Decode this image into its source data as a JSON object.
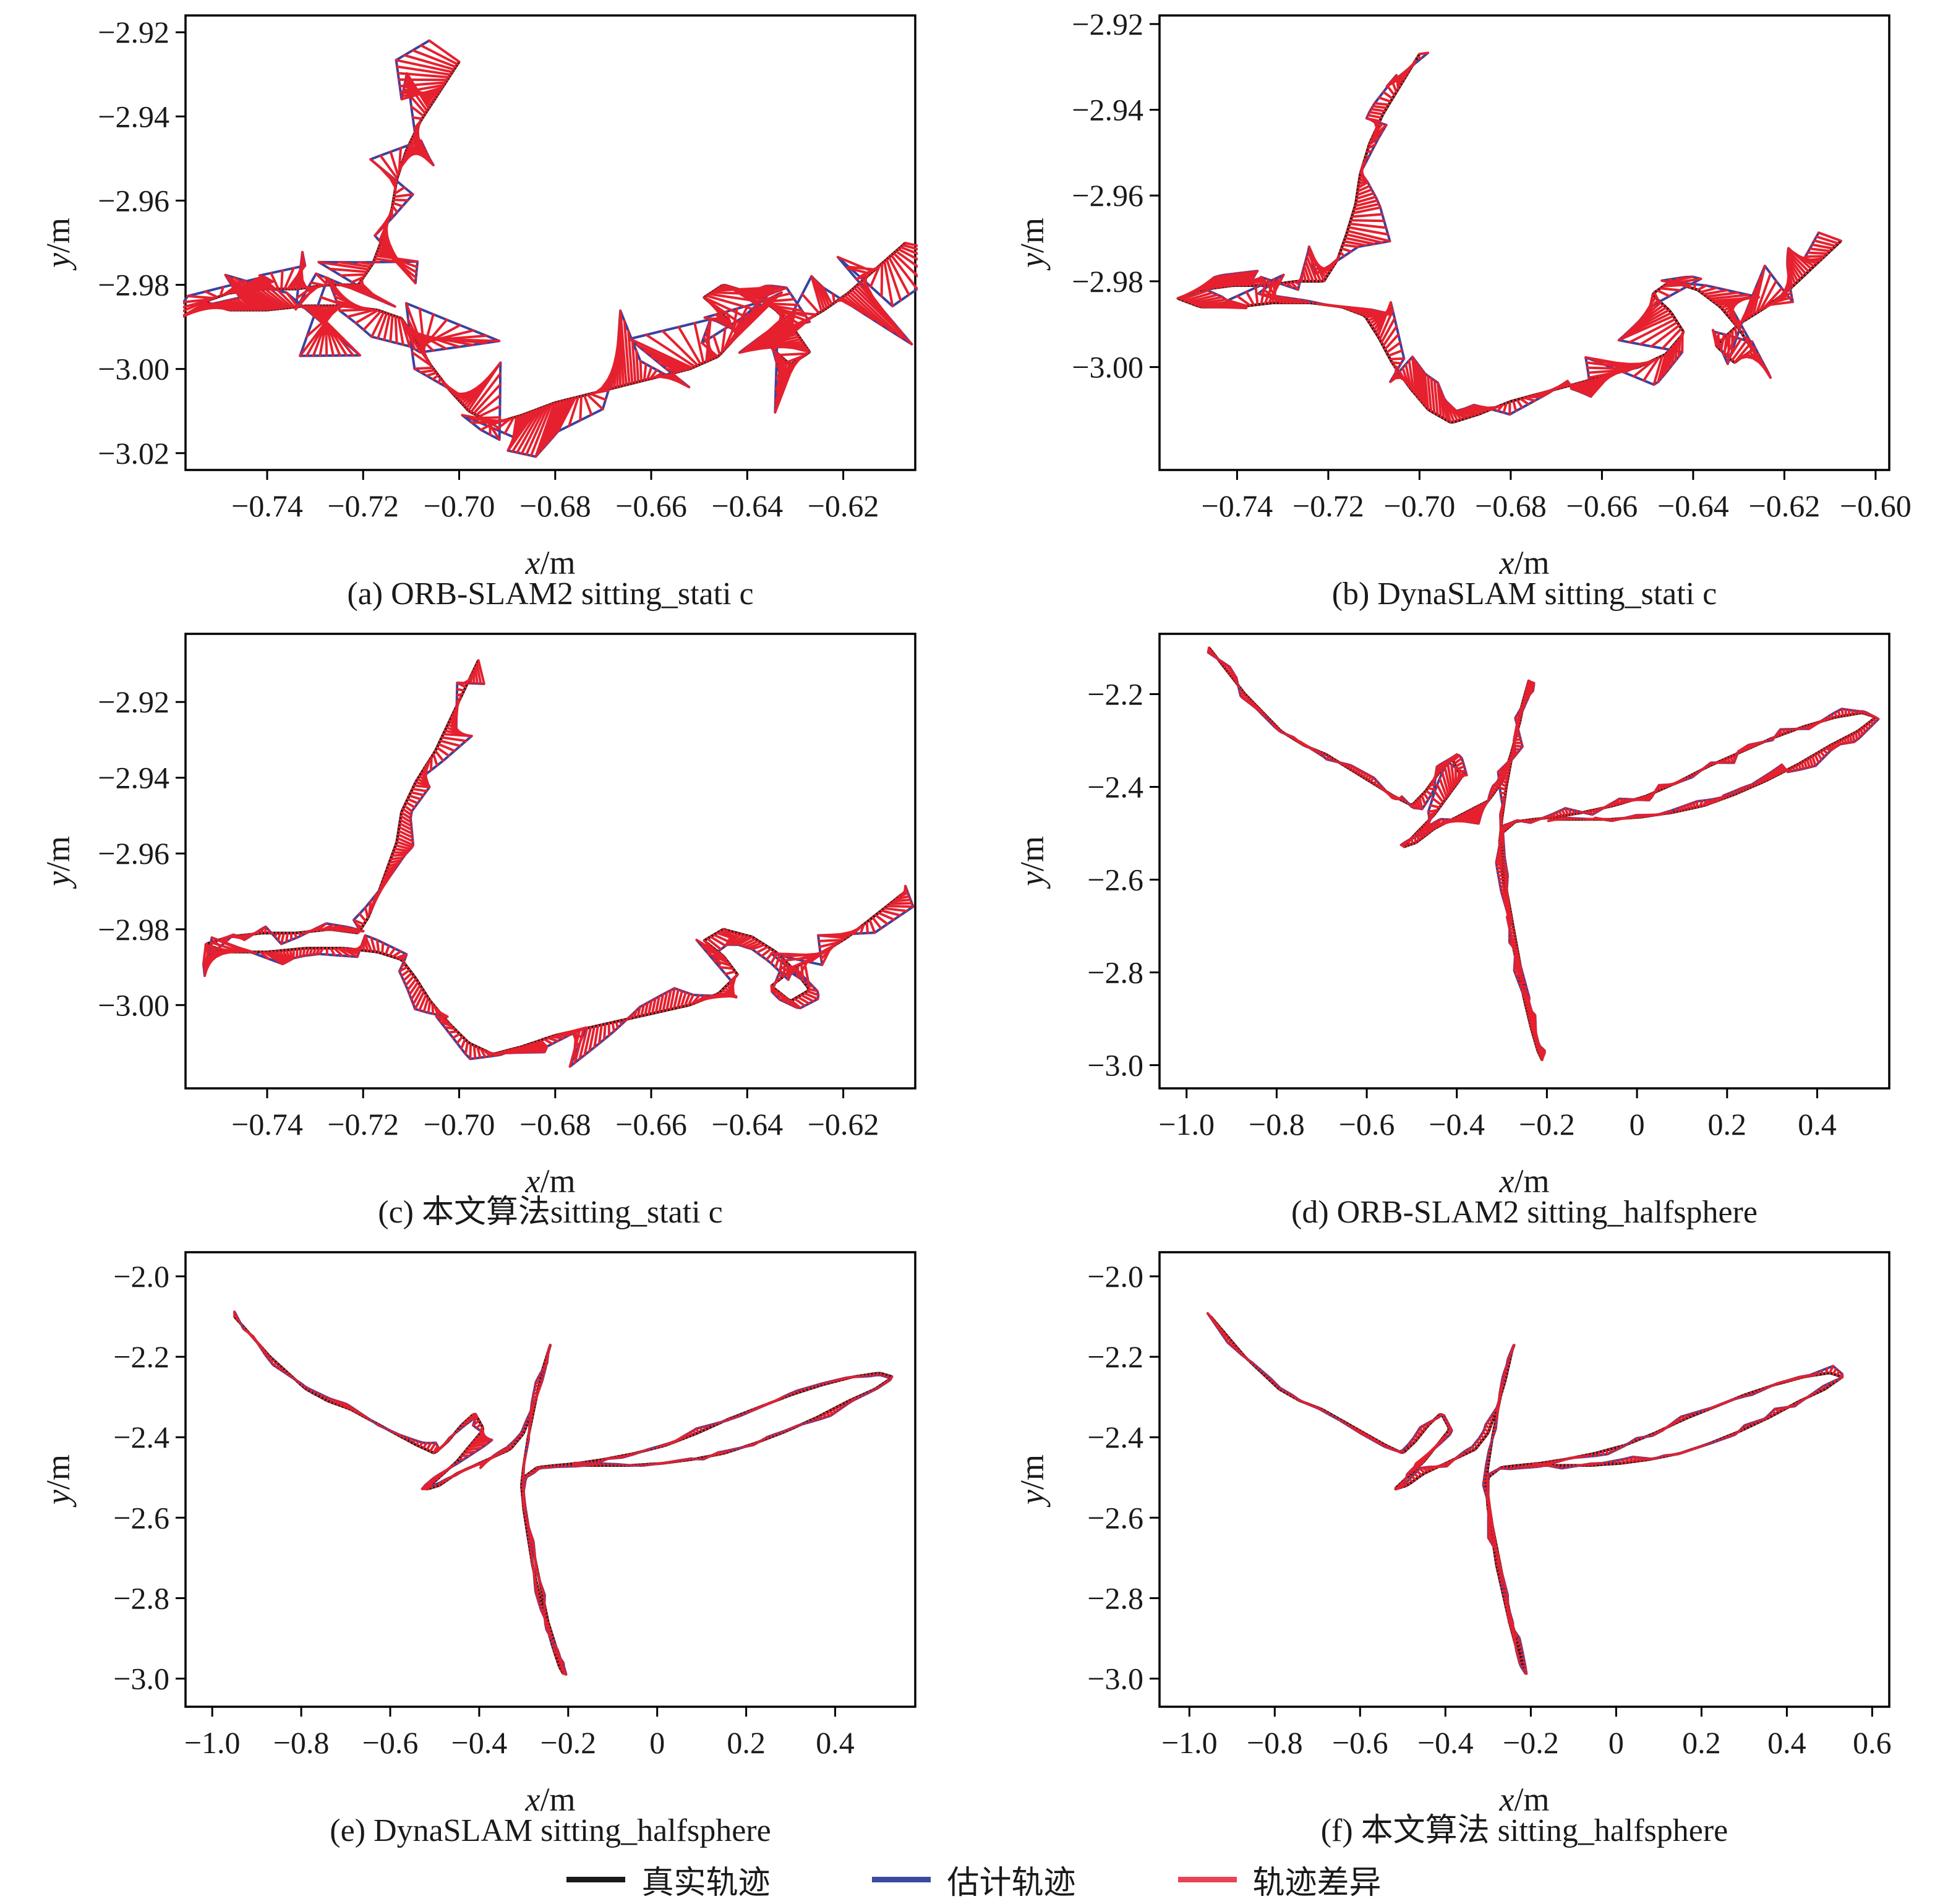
{
  "chart_data": {
    "type": "line",
    "description": "Six SLAM trajectory plots comparing ground-truth trajectory, estimated trajectory and trajectory difference on TUM sitting_static and sitting_halfsphere sequences",
    "colors": {
      "true": "#141414",
      "est": "#3743a1",
      "diff": "#e6202e",
      "legend_diff": "#e84455"
    },
    "legend": {
      "position": "bottom-center",
      "items": [
        {
          "key": "true-trajectory",
          "label": "真实轨迹",
          "color": "#1a1a1a"
        },
        {
          "key": "estimated-trajectory",
          "label": "估计轨迹",
          "color": "#3b4a9f"
        },
        {
          "key": "trajectory-difference",
          "label": "轨迹差异",
          "color": "#e84455"
        }
      ]
    },
    "paths": {
      "static": [
        [
          -0.7,
          -2.927
        ],
        [
          -0.704,
          -2.934
        ],
        [
          -0.708,
          -2.941
        ],
        [
          -0.711,
          -2.948
        ],
        [
          -0.713,
          -2.955
        ],
        [
          -0.714,
          -2.962
        ],
        [
          -0.716,
          -2.969
        ],
        [
          -0.718,
          -2.975
        ],
        [
          -0.721,
          -2.98
        ],
        [
          -0.727,
          -2.98
        ],
        [
          -0.734,
          -2.981
        ],
        [
          -0.741,
          -2.981
        ],
        [
          -0.748,
          -2.982
        ],
        [
          -0.753,
          -2.984
        ],
        [
          -0.748,
          -2.986
        ],
        [
          -0.74,
          -2.986
        ],
        [
          -0.732,
          -2.985
        ],
        [
          -0.724,
          -2.985
        ],
        [
          -0.717,
          -2.986
        ],
        [
          -0.712,
          -2.988
        ],
        [
          -0.709,
          -2.993
        ],
        [
          -0.706,
          -2.999
        ],
        [
          -0.702,
          -3.005
        ],
        [
          -0.698,
          -3.01
        ],
        [
          -0.693,
          -3.013
        ],
        [
          -0.687,
          -3.011
        ],
        [
          -0.68,
          -3.008
        ],
        [
          -0.673,
          -3.006
        ],
        [
          -0.666,
          -3.004
        ],
        [
          -0.659,
          -3.002
        ],
        [
          -0.652,
          -3.0
        ],
        [
          -0.646,
          -2.997
        ],
        [
          -0.642,
          -2.992
        ],
        [
          -0.645,
          -2.987
        ],
        [
          -0.649,
          -2.983
        ],
        [
          -0.645,
          -2.98
        ],
        [
          -0.639,
          -2.982
        ],
        [
          -0.634,
          -2.986
        ],
        [
          -0.63,
          -2.991
        ],
        [
          -0.627,
          -2.996
        ],
        [
          -0.631,
          -2.999
        ],
        [
          -0.635,
          -2.995
        ],
        [
          -0.63,
          -2.99
        ],
        [
          -0.624,
          -2.986
        ],
        [
          -0.619,
          -2.982
        ],
        [
          -0.615,
          -2.978
        ],
        [
          -0.611,
          -2.974
        ],
        [
          -0.607,
          -2.97
        ]
      ],
      "static_c": [
        [
          -0.696,
          -2.909
        ],
        [
          -0.699,
          -2.917
        ],
        [
          -0.702,
          -2.925
        ],
        [
          -0.705,
          -2.933
        ],
        [
          -0.709,
          -2.941
        ],
        [
          -0.712,
          -2.949
        ],
        [
          -0.713,
          -2.957
        ],
        [
          -0.715,
          -2.964
        ],
        [
          -0.717,
          -2.971
        ],
        [
          -0.719,
          -2.977
        ],
        [
          -0.721,
          -2.981
        ],
        [
          -0.727,
          -2.98
        ],
        [
          -0.734,
          -2.981
        ],
        [
          -0.741,
          -2.981
        ],
        [
          -0.748,
          -2.982
        ],
        [
          -0.753,
          -2.984
        ],
        [
          -0.748,
          -2.986
        ],
        [
          -0.74,
          -2.986
        ],
        [
          -0.732,
          -2.985
        ],
        [
          -0.724,
          -2.985
        ],
        [
          -0.717,
          -2.986
        ],
        [
          -0.712,
          -2.988
        ],
        [
          -0.709,
          -2.993
        ],
        [
          -0.706,
          -2.999
        ],
        [
          -0.702,
          -3.005
        ],
        [
          -0.698,
          -3.01
        ],
        [
          -0.693,
          -3.013
        ],
        [
          -0.687,
          -3.011
        ],
        [
          -0.68,
          -3.008
        ],
        [
          -0.673,
          -3.006
        ],
        [
          -0.666,
          -3.004
        ],
        [
          -0.659,
          -3.002
        ],
        [
          -0.652,
          -3.0
        ],
        [
          -0.646,
          -2.997
        ],
        [
          -0.642,
          -2.992
        ],
        [
          -0.645,
          -2.987
        ],
        [
          -0.649,
          -2.983
        ],
        [
          -0.645,
          -2.98
        ],
        [
          -0.639,
          -2.982
        ],
        [
          -0.634,
          -2.986
        ],
        [
          -0.63,
          -2.991
        ],
        [
          -0.627,
          -2.996
        ],
        [
          -0.631,
          -2.999
        ],
        [
          -0.635,
          -2.995
        ],
        [
          -0.63,
          -2.99
        ],
        [
          -0.624,
          -2.986
        ],
        [
          -0.619,
          -2.982
        ],
        [
          -0.615,
          -2.978
        ],
        [
          -0.611,
          -2.974
        ],
        [
          -0.607,
          -2.97
        ]
      ],
      "halfsphere": [
        [
          -0.95,
          -2.1
        ],
        [
          -0.91,
          -2.15
        ],
        [
          -0.87,
          -2.2
        ],
        [
          -0.83,
          -2.24
        ],
        [
          -0.79,
          -2.28
        ],
        [
          -0.74,
          -2.31
        ],
        [
          -0.69,
          -2.33
        ],
        [
          -0.64,
          -2.36
        ],
        [
          -0.59,
          -2.39
        ],
        [
          -0.54,
          -2.42
        ],
        [
          -0.5,
          -2.44
        ],
        [
          -0.47,
          -2.41
        ],
        [
          -0.44,
          -2.37
        ],
        [
          -0.41,
          -2.34
        ],
        [
          -0.39,
          -2.38
        ],
        [
          -0.42,
          -2.42
        ],
        [
          -0.45,
          -2.46
        ],
        [
          -0.49,
          -2.5
        ],
        [
          -0.52,
          -2.53
        ],
        [
          -0.49,
          -2.52
        ],
        [
          -0.45,
          -2.49
        ],
        [
          -0.41,
          -2.47
        ],
        [
          -0.37,
          -2.45
        ],
        [
          -0.33,
          -2.43
        ],
        [
          -0.3,
          -2.39
        ],
        [
          -0.28,
          -2.33
        ],
        [
          -0.26,
          -2.26
        ],
        [
          -0.245,
          -2.19
        ],
        [
          -0.24,
          -2.17
        ],
        [
          -0.26,
          -2.24
        ],
        [
          -0.275,
          -2.32
        ],
        [
          -0.29,
          -2.4
        ],
        [
          -0.3,
          -2.47
        ],
        [
          -0.305,
          -2.52
        ],
        [
          -0.3,
          -2.58
        ],
        [
          -0.29,
          -2.65
        ],
        [
          -0.28,
          -2.72
        ],
        [
          -0.265,
          -2.79
        ],
        [
          -0.25,
          -2.86
        ],
        [
          -0.235,
          -2.92
        ],
        [
          -0.22,
          -2.97
        ],
        [
          -0.21,
          -2.99
        ],
        [
          -0.225,
          -2.93
        ],
        [
          -0.245,
          -2.86
        ],
        [
          -0.26,
          -2.78
        ],
        [
          -0.275,
          -2.7
        ],
        [
          -0.29,
          -2.62
        ],
        [
          -0.3,
          -2.55
        ],
        [
          -0.3,
          -2.5
        ],
        [
          -0.27,
          -2.475
        ],
        [
          -0.23,
          -2.47
        ],
        [
          -0.18,
          -2.465
        ],
        [
          -0.12,
          -2.455
        ],
        [
          -0.05,
          -2.44
        ],
        [
          0.02,
          -2.42
        ],
        [
          0.09,
          -2.39
        ],
        [
          0.16,
          -2.355
        ],
        [
          0.23,
          -2.325
        ],
        [
          0.3,
          -2.295
        ],
        [
          0.37,
          -2.27
        ],
        [
          0.44,
          -2.25
        ],
        [
          0.5,
          -2.24
        ],
        [
          0.53,
          -2.25
        ],
        [
          0.49,
          -2.28
        ],
        [
          0.43,
          -2.31
        ],
        [
          0.36,
          -2.35
        ],
        [
          0.29,
          -2.385
        ],
        [
          0.22,
          -2.415
        ],
        [
          0.15,
          -2.44
        ],
        [
          0.08,
          -2.455
        ],
        [
          0.01,
          -2.465
        ],
        [
          -0.06,
          -2.47
        ],
        [
          -0.13,
          -2.47
        ],
        [
          -0.19,
          -2.47
        ]
      ]
    },
    "plots": [
      {
        "id": "a",
        "caption": "(a) ORB-SLAM2 sitting_stati c",
        "xlabel": "x/m",
        "ylabel": "y/m",
        "path": "static",
        "seed": 11,
        "amp": 0.013,
        "step": 5,
        "hotspot": {
          "cx": -0.672,
          "cy": -3.0,
          "r": 0.05,
          "mult": 1.5
        },
        "xlim": [
          -0.757,
          -0.605
        ],
        "ylim": [
          -3.024,
          -2.916
        ],
        "xticks": [
          {
            "v": -0.74,
            "t": "−0.74"
          },
          {
            "v": -0.72,
            "t": "−0.72"
          },
          {
            "v": -0.7,
            "t": "−0.70"
          },
          {
            "v": -0.68,
            "t": "−0.68"
          },
          {
            "v": -0.66,
            "t": "−0.66"
          },
          {
            "v": -0.64,
            "t": "−0.64"
          },
          {
            "v": -0.62,
            "t": "−0.62"
          }
        ],
        "yticks": [
          {
            "v": -2.92,
            "t": "−2.92"
          },
          {
            "v": -2.94,
            "t": "−2.94"
          },
          {
            "v": -2.96,
            "t": "−2.96"
          },
          {
            "v": -2.98,
            "t": "−2.98"
          },
          {
            "v": -3.0,
            "t": "−3.00"
          },
          {
            "v": -3.02,
            "t": "−3.02"
          }
        ]
      },
      {
        "id": "b",
        "caption": "(b) DynaSLAM sitting_stati c",
        "xlabel": "x/m",
        "ylabel": "y/m",
        "path": "static",
        "seed": 7,
        "amp": 0.0075,
        "step": 6,
        "hotspot": {
          "cx": -0.645,
          "cy": -2.995,
          "r": 0.04,
          "mult": 1.7
        },
        "xlim": [
          -0.757,
          -0.597
        ],
        "ylim": [
          -3.024,
          -2.918
        ],
        "xticks": [
          {
            "v": -0.74,
            "t": "−0.74"
          },
          {
            "v": -0.72,
            "t": "−0.72"
          },
          {
            "v": -0.7,
            "t": "−0.70"
          },
          {
            "v": -0.68,
            "t": "−0.68"
          },
          {
            "v": -0.66,
            "t": "−0.66"
          },
          {
            "v": -0.64,
            "t": "−0.64"
          },
          {
            "v": -0.62,
            "t": "−0.62"
          },
          {
            "v": -0.6,
            "t": "−0.60"
          }
        ],
        "yticks": [
          {
            "v": -2.92,
            "t": "−2.92"
          },
          {
            "v": -2.94,
            "t": "−2.94"
          },
          {
            "v": -2.96,
            "t": "−2.96"
          },
          {
            "v": -2.98,
            "t": "−2.98"
          },
          {
            "v": -3.0,
            "t": "−3.00"
          }
        ]
      },
      {
        "id": "c",
        "caption": "(c) 本文算法sitting_stati c",
        "xlabel": "x/m",
        "ylabel": "y/m",
        "path": "static_c",
        "seed": 5,
        "amp": 0.0065,
        "step": 6,
        "hotspot": {
          "cx": -0.66,
          "cy": -3.0,
          "r": 0.045,
          "mult": 1.5
        },
        "xlim": [
          -0.757,
          -0.605
        ],
        "ylim": [
          -3.022,
          -2.902
        ],
        "xticks": [
          {
            "v": -0.74,
            "t": "−0.74"
          },
          {
            "v": -0.72,
            "t": "−0.72"
          },
          {
            "v": -0.7,
            "t": "−0.70"
          },
          {
            "v": -0.68,
            "t": "−0.68"
          },
          {
            "v": -0.66,
            "t": "−0.66"
          },
          {
            "v": -0.64,
            "t": "−0.64"
          },
          {
            "v": -0.62,
            "t": "−0.62"
          }
        ],
        "yticks": [
          {
            "v": -2.92,
            "t": "−2.92"
          },
          {
            "v": -2.94,
            "t": "−2.94"
          },
          {
            "v": -2.96,
            "t": "−2.96"
          },
          {
            "v": -2.98,
            "t": "−2.98"
          },
          {
            "v": -3.0,
            "t": "−3.00"
          }
        ]
      },
      {
        "id": "d",
        "caption": "(d) ORB-SLAM2 sitting_halfsphere",
        "xlabel": "x/m",
        "ylabel": "y/m",
        "path": "halfsphere",
        "seed": 21,
        "amp": 0.02,
        "step": 5,
        "hotspot": {
          "cx": -0.42,
          "cy": -2.44,
          "r": 0.14,
          "mult": 3.5
        },
        "xlim": [
          -1.06,
          0.56
        ],
        "ylim": [
          -3.05,
          -2.07
        ],
        "xticks": [
          {
            "v": -1.0,
            "t": "−1.0"
          },
          {
            "v": -0.8,
            "t": "−0.8"
          },
          {
            "v": -0.6,
            "t": "−0.6"
          },
          {
            "v": -0.4,
            "t": "−0.4"
          },
          {
            "v": -0.2,
            "t": "−0.2"
          },
          {
            "v": 0,
            "t": "0"
          },
          {
            "v": 0.2,
            "t": "0.2"
          },
          {
            "v": 0.4,
            "t": "0.4"
          }
        ],
        "yticks": [
          {
            "v": -2.2,
            "t": "−2.2"
          },
          {
            "v": -2.4,
            "t": "−2.4"
          },
          {
            "v": -2.6,
            "t": "−2.6"
          },
          {
            "v": -2.8,
            "t": "−2.8"
          },
          {
            "v": -3.0,
            "t": "−3.0"
          }
        ]
      },
      {
        "id": "e",
        "caption": "(e) DynaSLAM sitting_halfsphere",
        "xlabel": "x/m",
        "ylabel": "y/m",
        "path": "halfsphere",
        "seed": 31,
        "amp": 0.012,
        "step": 6,
        "hotspot": {
          "cx": -0.42,
          "cy": -2.44,
          "r": 0.11,
          "mult": 4.0
        },
        "xlim": [
          -1.06,
          0.58
        ],
        "ylim": [
          -3.07,
          -1.94
        ],
        "xticks": [
          {
            "v": -1.0,
            "t": "−1.0"
          },
          {
            "v": -0.8,
            "t": "−0.8"
          },
          {
            "v": -0.6,
            "t": "−0.6"
          },
          {
            "v": -0.4,
            "t": "−0.4"
          },
          {
            "v": -0.2,
            "t": "−0.2"
          },
          {
            "v": 0,
            "t": "0"
          },
          {
            "v": 0.2,
            "t": "0.2"
          },
          {
            "v": 0.4,
            "t": "0.4"
          }
        ],
        "yticks": [
          {
            "v": -2.0,
            "t": "−2.0"
          },
          {
            "v": -2.2,
            "t": "−2.2"
          },
          {
            "v": -2.4,
            "t": "−2.4"
          },
          {
            "v": -2.6,
            "t": "−2.6"
          },
          {
            "v": -2.8,
            "t": "−2.8"
          },
          {
            "v": -3.0,
            "t": "−3.0"
          }
        ]
      },
      {
        "id": "f",
        "caption": "(f) 本文算法 sitting_halfsphere",
        "xlabel": "x/m",
        "ylabel": "y/m",
        "path": "halfsphere",
        "seed": 41,
        "amp": 0.013,
        "step": 6,
        "hotspot": {
          "cx": -0.42,
          "cy": -2.44,
          "r": 0.11,
          "mult": 3.5
        },
        "xlim": [
          -1.07,
          0.64
        ],
        "ylim": [
          -3.07,
          -1.94
        ],
        "xticks": [
          {
            "v": -1.0,
            "t": "−1.0"
          },
          {
            "v": -0.8,
            "t": "−0.8"
          },
          {
            "v": -0.6,
            "t": "−0.6"
          },
          {
            "v": -0.4,
            "t": "−0.4"
          },
          {
            "v": -0.2,
            "t": "−0.2"
          },
          {
            "v": 0,
            "t": "0"
          },
          {
            "v": 0.2,
            "t": "0.2"
          },
          {
            "v": 0.4,
            "t": "0.4"
          },
          {
            "v": 0.6,
            "t": "0.6"
          }
        ],
        "yticks": [
          {
            "v": -2.0,
            "t": "−2.0"
          },
          {
            "v": -2.2,
            "t": "−2.2"
          },
          {
            "v": -2.4,
            "t": "−2.4"
          },
          {
            "v": -2.6,
            "t": "−2.6"
          },
          {
            "v": -2.8,
            "t": "−2.8"
          },
          {
            "v": -3.0,
            "t": "−3.0"
          }
        ]
      }
    ]
  }
}
